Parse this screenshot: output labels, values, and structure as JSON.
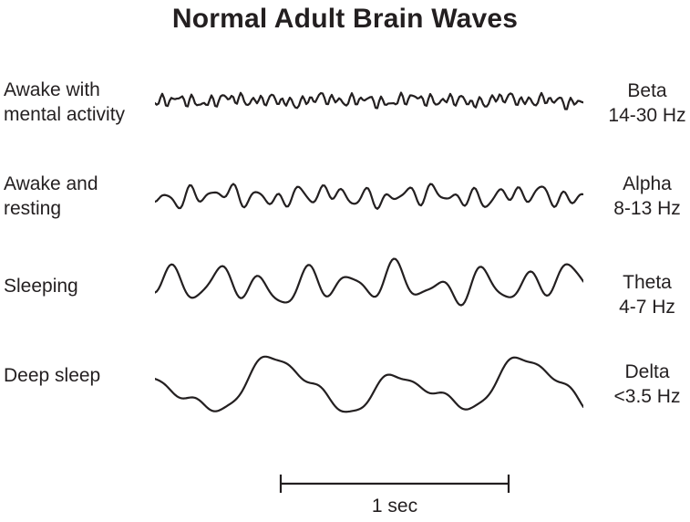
{
  "title": "Normal Adult Brain Waves",
  "ink_color": "#231f20",
  "rows": [
    {
      "state_line1": "Awake with",
      "state_line2": "mental activity",
      "wave_name": "Beta",
      "freq_range": "14-30 Hz",
      "wave": {
        "amplitude": 8,
        "components": [
          {
            "f": 43,
            "a": 0.5,
            "p": 0.3
          },
          {
            "f": 27,
            "a": 0.35,
            "p": 2.1
          },
          {
            "f": 61,
            "a": 0.22,
            "p": 4.0
          },
          {
            "f": 9.3,
            "a": 0.28,
            "p": 1.2
          },
          {
            "f": 4.7,
            "a": 0.18,
            "p": 5.1
          }
        ]
      }
    },
    {
      "state_line1": "Awake and",
      "state_line2": "resting",
      "wave_name": "Alpha",
      "freq_range": "8-13 Hz",
      "wave": {
        "amplitude": 13,
        "components": [
          {
            "f": 19.5,
            "a": 0.55,
            "p": 1.0
          },
          {
            "f": 12.3,
            "a": 0.3,
            "p": 4.2
          },
          {
            "f": 28.7,
            "a": 0.2,
            "p": 2.6
          },
          {
            "f": 4.2,
            "a": 0.25,
            "p": 0.7
          }
        ]
      }
    },
    {
      "state_line1": "Sleeping",
      "wave_name": "Theta",
      "freq_range": "4-7 Hz",
      "wave": {
        "amplitude": 24,
        "components": [
          {
            "f": 9.7,
            "a": 0.6,
            "p": 2.0
          },
          {
            "f": 5.2,
            "a": 0.28,
            "p": 5.0
          },
          {
            "f": 15.4,
            "a": 0.2,
            "p": 1.1
          },
          {
            "f": 2.3,
            "a": 0.18,
            "p": 3.7
          }
        ]
      }
    },
    {
      "state_line1": "Deep sleep",
      "wave_name": "Delta",
      "freq_range": "<3.5 Hz",
      "wave": {
        "amplitude": 36,
        "components": [
          {
            "f": 3.4,
            "a": 0.62,
            "p": 4.9
          },
          {
            "f": 1.8,
            "a": 0.28,
            "p": 1.4
          },
          {
            "f": 6.9,
            "a": 0.18,
            "p": 0.2
          },
          {
            "f": 13.7,
            "a": 0.07,
            "p": 2.8
          }
        ]
      }
    }
  ],
  "scale_bar": {
    "label": "1 sec"
  }
}
